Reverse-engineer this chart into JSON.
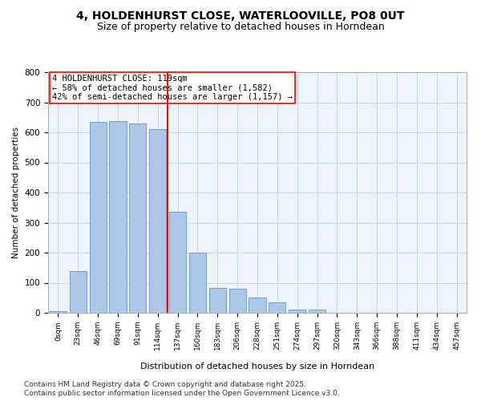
{
  "title_line1": "4, HOLDENHURST CLOSE, WATERLOOVILLE, PO8 0UT",
  "title_line2": "Size of property relative to detached houses in Horndean",
  "xlabel": "Distribution of detached houses by size in Horndean",
  "ylabel": "Number of detached properties",
  "bar_color": "#aec6e8",
  "bar_edge_color": "#5b9bd5",
  "vline_color": "red",
  "vline_x": 5.5,
  "annotation_text": "4 HOLDENHURST CLOSE: 119sqm\n← 58% of detached houses are smaller (1,582)\n42% of semi-detached houses are larger (1,157) →",
  "annotation_fontsize": 7.5,
  "annotation_box_color": "white",
  "annotation_box_edge": "red",
  "categories": [
    "0sqm",
    "23sqm",
    "46sqm",
    "69sqm",
    "91sqm",
    "114sqm",
    "137sqm",
    "160sqm",
    "183sqm",
    "206sqm",
    "228sqm",
    "251sqm",
    "274sqm",
    "297sqm",
    "320sqm",
    "343sqm",
    "366sqm",
    "388sqm",
    "411sqm",
    "434sqm",
    "457sqm"
  ],
  "bar_heights": [
    5,
    140,
    635,
    638,
    630,
    612,
    335,
    200,
    82,
    80,
    50,
    35,
    10,
    12,
    0,
    0,
    0,
    0,
    0,
    0,
    0
  ],
  "ylim": [
    0,
    800
  ],
  "yticks": [
    0,
    100,
    200,
    300,
    400,
    500,
    600,
    700,
    800
  ],
  "background_color": "#eef2f9",
  "grid_color": "#c8d4e8",
  "footnote1": "Contains HM Land Registry data © Crown copyright and database right 2025.",
  "footnote2": "Contains public sector information licensed under the Open Government Licence v3.0.",
  "title_fontsize": 10,
  "subtitle_fontsize": 9,
  "footnote_fontsize": 6.5
}
